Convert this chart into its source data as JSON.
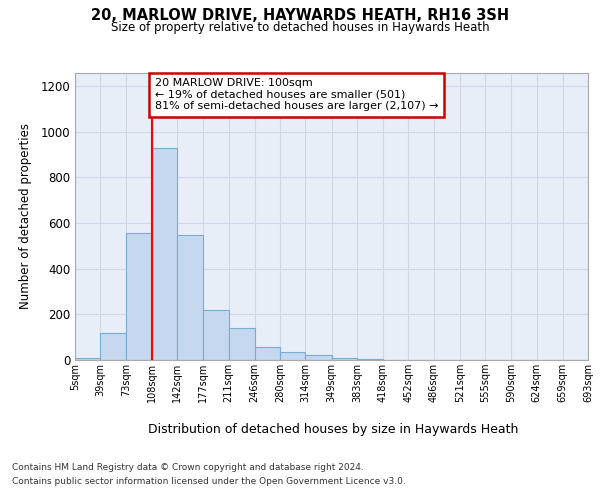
{
  "title1": "20, MARLOW DRIVE, HAYWARDS HEATH, RH16 3SH",
  "title2": "Size of property relative to detached houses in Haywards Heath",
  "xlabel": "Distribution of detached houses by size in Haywards Heath",
  "ylabel": "Number of detached properties",
  "bar_edges": [
    5,
    39,
    73,
    108,
    142,
    177,
    211,
    246,
    280,
    314,
    349,
    383,
    418,
    452,
    486,
    521,
    555,
    590,
    624,
    659,
    693
  ],
  "bar_heights": [
    10,
    120,
    555,
    930,
    548,
    220,
    140,
    55,
    35,
    22,
    10,
    5,
    0,
    0,
    0,
    0,
    0,
    0,
    0,
    0
  ],
  "bar_color": "#c5d8f0",
  "bar_edgecolor": "#7aadd4",
  "bar_linewidth": 0.8,
  "redline_x": 108,
  "ylim": [
    0,
    1260
  ],
  "yticks": [
    0,
    200,
    400,
    600,
    800,
    1000,
    1200
  ],
  "annotation_text": "20 MARLOW DRIVE: 100sqm\n← 19% of detached houses are smaller (501)\n81% of semi-detached houses are larger (2,107) →",
  "annotation_box_color": "#ffffff",
  "annotation_box_edgecolor": "#cc0000",
  "grid_color": "#d0d8e8",
  "background_color": "#e8eef8",
  "footer_line1": "Contains HM Land Registry data © Crown copyright and database right 2024.",
  "footer_line2": "Contains public sector information licensed under the Open Government Licence v3.0.",
  "tick_labels": [
    "5sqm",
    "39sqm",
    "73sqm",
    "108sqm",
    "142sqm",
    "177sqm",
    "211sqm",
    "246sqm",
    "280sqm",
    "314sqm",
    "349sqm",
    "383sqm",
    "418sqm",
    "452sqm",
    "486sqm",
    "521sqm",
    "555sqm",
    "590sqm",
    "624sqm",
    "659sqm",
    "693sqm"
  ]
}
